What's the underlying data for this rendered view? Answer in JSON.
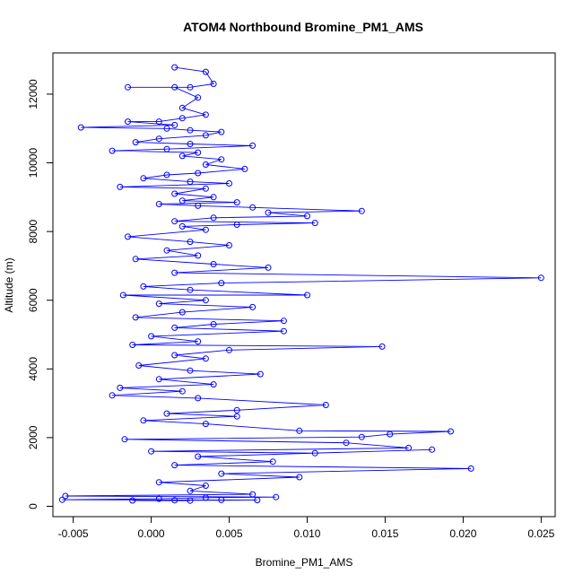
{
  "chart_data": {
    "type": "line",
    "title": "ATOM4 Northbound Bromine_PM1_AMS",
    "xlabel": "Bromine_PM1_AMS",
    "ylabel": "Altitude (m)",
    "xlim": [
      -0.0063,
      0.0259
    ],
    "ylim": [
      -300,
      13200
    ],
    "xticks": [
      -0.005,
      0.0,
      0.005,
      0.01,
      0.015,
      0.02,
      0.025
    ],
    "xtick_labels": [
      "-0.005",
      "0.000",
      "0.005",
      "0.010",
      "0.015",
      "0.020",
      "0.025"
    ],
    "yticks": [
      0,
      2000,
      4000,
      6000,
      8000,
      10000,
      12000
    ],
    "ytick_labels": [
      "0",
      "2000",
      "4000",
      "6000",
      "8000",
      "10000",
      "12000"
    ],
    "grid": false,
    "series": [
      {
        "color": "#0000ff",
        "marker": "open-circle",
        "points": [
          [
            0.0015,
            12780
          ],
          [
            0.0035,
            12650
          ],
          [
            0.004,
            12300
          ],
          [
            0.0025,
            12200
          ],
          [
            -0.0015,
            12200
          ],
          [
            0.0015,
            12200
          ],
          [
            0.003,
            11900
          ],
          [
            0.002,
            11600
          ],
          [
            0.0035,
            11400
          ],
          [
            0.002,
            11300
          ],
          [
            0.0005,
            11200
          ],
          [
            -0.0015,
            11200
          ],
          [
            0.0015,
            11100
          ],
          [
            -0.0045,
            11030
          ],
          [
            0.001,
            11000
          ],
          [
            0.0025,
            10950
          ],
          [
            0.0045,
            10900
          ],
          [
            0.0035,
            10800
          ],
          [
            0.0005,
            10700
          ],
          [
            -0.001,
            10600
          ],
          [
            0.0025,
            10550
          ],
          [
            0.0065,
            10500
          ],
          [
            0.001,
            10400
          ],
          [
            -0.0025,
            10350
          ],
          [
            0.003,
            10300
          ],
          [
            0.002,
            10200
          ],
          [
            0.0045,
            10100
          ],
          [
            0.0035,
            9950
          ],
          [
            0.006,
            9820
          ],
          [
            0.003,
            9700
          ],
          [
            0.001,
            9650
          ],
          [
            -0.0005,
            9550
          ],
          [
            0.0025,
            9450
          ],
          [
            0.005,
            9400
          ],
          [
            -0.002,
            9300
          ],
          [
            0.0035,
            9250
          ],
          [
            0.0015,
            9100
          ],
          [
            0.004,
            9000
          ],
          [
            0.002,
            8900
          ],
          [
            0.0055,
            8850
          ],
          [
            0.0005,
            8800
          ],
          [
            0.003,
            8750
          ],
          [
            0.0065,
            8700
          ],
          [
            0.0135,
            8600
          ],
          [
            0.0075,
            8550
          ],
          [
            0.01,
            8450
          ],
          [
            0.004,
            8400
          ],
          [
            0.0015,
            8300
          ],
          [
            0.0105,
            8250
          ],
          [
            0.0055,
            8200
          ],
          [
            0.002,
            8150
          ],
          [
            0.0035,
            8050
          ],
          [
            -0.0015,
            7850
          ],
          [
            0.0025,
            7700
          ],
          [
            0.005,
            7600
          ],
          [
            0.001,
            7450
          ],
          [
            0.003,
            7300
          ],
          [
            -0.001,
            7200
          ],
          [
            0.004,
            7050
          ],
          [
            0.0075,
            6950
          ],
          [
            0.0015,
            6800
          ],
          [
            0.025,
            6650
          ],
          [
            0.0045,
            6500
          ],
          [
            -0.0005,
            6400
          ],
          [
            0.0025,
            6300
          ],
          [
            0.01,
            6150
          ],
          [
            -0.0018,
            6150
          ],
          [
            0.0035,
            6000
          ],
          [
            0.0005,
            5900
          ],
          [
            0.0065,
            5800
          ],
          [
            0.002,
            5650
          ],
          [
            -0.001,
            5500
          ],
          [
            0.0085,
            5400
          ],
          [
            0.004,
            5300
          ],
          [
            0.0015,
            5200
          ],
          [
            0.0085,
            5100
          ],
          [
            0.0,
            4950
          ],
          [
            0.003,
            4800
          ],
          [
            -0.0012,
            4700
          ],
          [
            0.0148,
            4650
          ],
          [
            0.005,
            4550
          ],
          [
            0.0015,
            4400
          ],
          [
            0.0035,
            4300
          ],
          [
            -0.0008,
            4100
          ],
          [
            0.0025,
            3950
          ],
          [
            0.007,
            3850
          ],
          [
            0.0005,
            3700
          ],
          [
            0.004,
            3550
          ],
          [
            -0.002,
            3450
          ],
          [
            0.002,
            3350
          ],
          [
            -0.0025,
            3230
          ],
          [
            0.003,
            3150
          ],
          [
            0.0112,
            2950
          ],
          [
            0.0055,
            2800
          ],
          [
            0.001,
            2700
          ],
          [
            0.0055,
            2620
          ],
          [
            -0.0005,
            2500
          ],
          [
            0.0035,
            2400
          ],
          [
            0.0095,
            2200
          ],
          [
            0.0192,
            2180
          ],
          [
            0.0153,
            2100
          ],
          [
            0.0135,
            2020
          ],
          [
            -0.0017,
            1950
          ],
          [
            0.0125,
            1850
          ],
          [
            0.0165,
            1700
          ],
          [
            0.0,
            1600
          ],
          [
            0.0105,
            1550
          ],
          [
            0.018,
            1650
          ],
          [
            0.003,
            1450
          ],
          [
            0.0078,
            1300
          ],
          [
            0.0015,
            1200
          ],
          [
            0.0205,
            1100
          ],
          [
            0.0045,
            950
          ],
          [
            0.0095,
            850
          ],
          [
            0.0005,
            700
          ],
          [
            0.0035,
            600
          ],
          [
            0.0025,
            450
          ],
          [
            0.0065,
            350
          ],
          [
            -0.0055,
            300
          ],
          [
            0.008,
            270
          ],
          [
            0.0035,
            250
          ],
          [
            0.0005,
            220
          ],
          [
            -0.0057,
            190
          ],
          [
            0.0045,
            185
          ],
          [
            0.0068,
            180
          ],
          [
            0.0015,
            175
          ],
          [
            -0.0012,
            170
          ],
          [
            0.0025,
            165
          ]
        ]
      }
    ]
  }
}
